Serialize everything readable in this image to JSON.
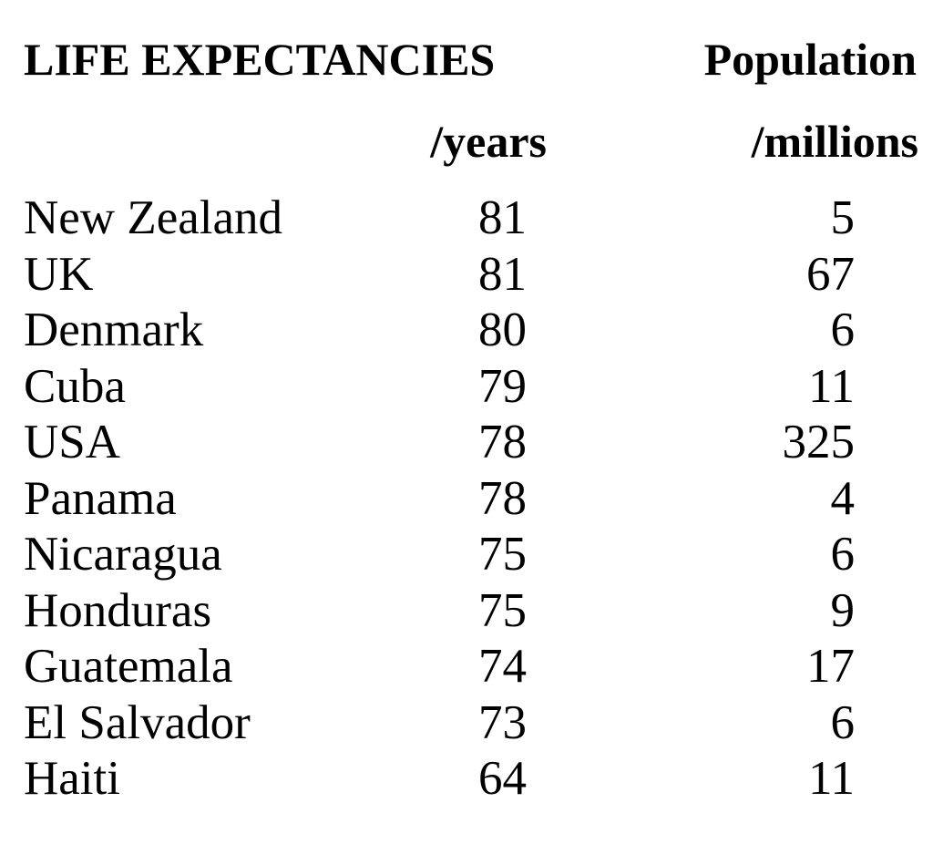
{
  "header": {
    "title": "LIFE EXPECTANCIES",
    "population_label": "Population",
    "life_unit": "/years",
    "population_unit": "/millions"
  },
  "rows": [
    {
      "country": "New Zealand",
      "life_expectancy": "81",
      "population": "5"
    },
    {
      "country": "UK",
      "life_expectancy": "81",
      "population": "67"
    },
    {
      "country": "Denmark",
      "life_expectancy": "80",
      "population": "6"
    },
    {
      "country": "Cuba",
      "life_expectancy": "79",
      "population": "11"
    },
    {
      "country": "USA",
      "life_expectancy": "78",
      "population": "325"
    },
    {
      "country": "Panama",
      "life_expectancy": "78",
      "population": "4"
    },
    {
      "country": "Nicaragua",
      "life_expectancy": "75",
      "population": "6"
    },
    {
      "country": "Honduras",
      "life_expectancy": "75",
      "population": "9"
    },
    {
      "country": "Guatemala",
      "life_expectancy": "74",
      "population": "17"
    },
    {
      "country": "El Salvador",
      "life_expectancy": "73",
      "population": "6"
    },
    {
      "country": "Haiti",
      "life_expectancy": "64",
      "population": "11"
    }
  ]
}
